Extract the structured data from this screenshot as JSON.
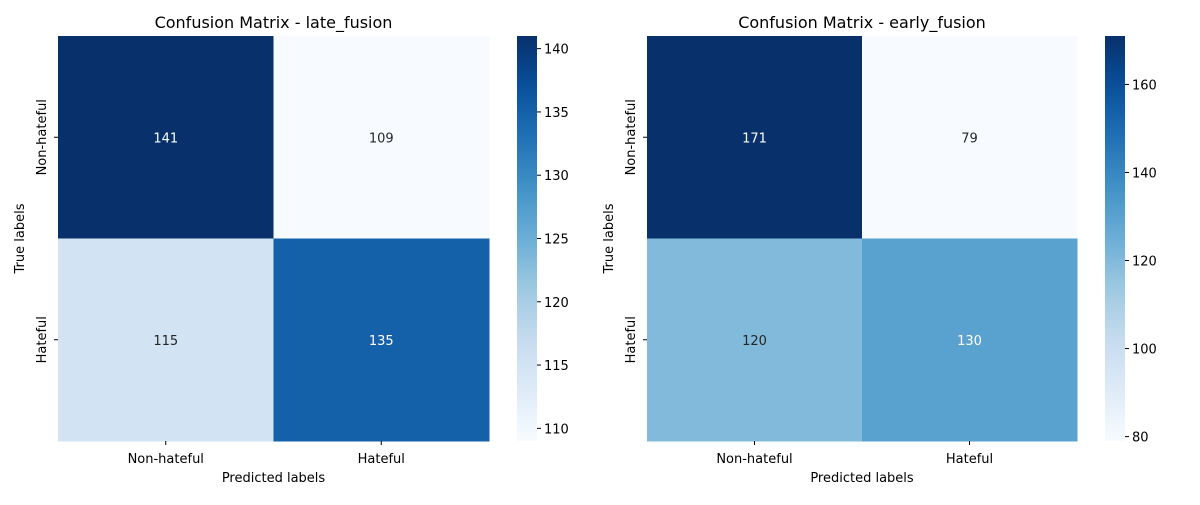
{
  "chart_data": [
    {
      "type": "heatmap",
      "title": "Confusion Matrix - late_fusion",
      "xlabel": "Predicted labels",
      "ylabel": "True labels",
      "x_categories": [
        "Non-hateful",
        "Hateful"
      ],
      "y_categories": [
        "Non-hateful",
        "Hateful"
      ],
      "values": [
        [
          141,
          109
        ],
        [
          115,
          135
        ]
      ],
      "colormap": "Blues",
      "colorbar": {
        "min": 109,
        "max": 141,
        "ticks": [
          110,
          115,
          120,
          125,
          130,
          135,
          140
        ]
      }
    },
    {
      "type": "heatmap",
      "title": "Confusion Matrix - early_fusion",
      "xlabel": "Predicted labels",
      "ylabel": "True labels",
      "x_categories": [
        "Non-hateful",
        "Hateful"
      ],
      "y_categories": [
        "Non-hateful",
        "Hateful"
      ],
      "values": [
        [
          171,
          79
        ],
        [
          120,
          130
        ]
      ],
      "colormap": "Blues",
      "colorbar": {
        "min": 79,
        "max": 171,
        "ticks": [
          80,
          100,
          120,
          140,
          160
        ]
      }
    }
  ]
}
